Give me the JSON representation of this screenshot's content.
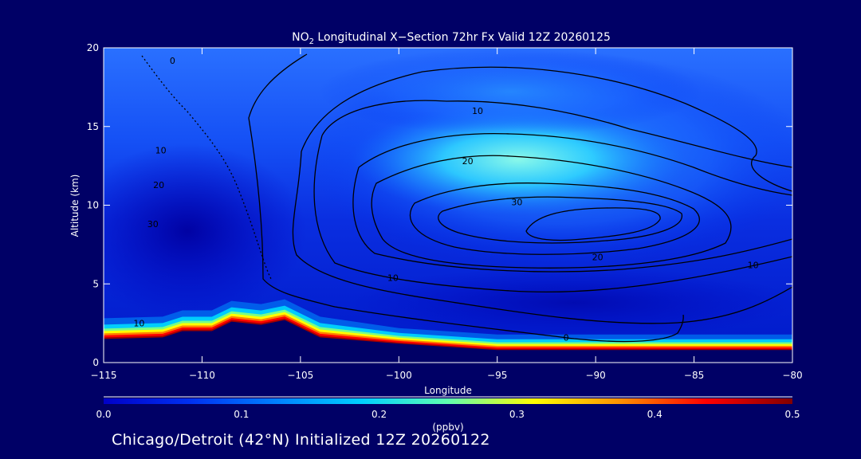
{
  "chart_data": {
    "type": "heatmap",
    "title_prefix": "NO",
    "title_sub": "2",
    "title_suffix": " Longitudinal X−Section 72hr  Fx Valid 12Z 20260125",
    "xlabel": "Longitude",
    "ylabel": "Altitude (km)",
    "xlim": [
      -115,
      -80
    ],
    "ylim": [
      0,
      20
    ],
    "xticks": [
      -115,
      -110,
      -105,
      -100,
      -95,
      -90,
      -85,
      -80
    ],
    "xtick_labels": [
      "−115",
      "−110",
      "−105",
      "−100",
      "−95",
      "−90",
      "−85",
      "−80"
    ],
    "yticks": [
      0,
      5,
      10,
      15,
      20
    ],
    "ytick_labels": [
      "0",
      "5",
      "10",
      "15",
      "20"
    ],
    "grid": false,
    "colorbar": {
      "label": "(ppbv)",
      "min": 0.0,
      "max": 0.5,
      "ticks": [
        0.0,
        0.1,
        0.2,
        0.3,
        0.4,
        0.5
      ],
      "tick_labels": [
        "0.0",
        "0.1",
        "0.2",
        "0.3",
        "0.4",
        "0.5"
      ],
      "colors": [
        "#0000c8",
        "#0030f0",
        "#0080ff",
        "#00d0ff",
        "#60ffb0",
        "#ffff00",
        "#ff9000",
        "#ff0000",
        "#800000"
      ]
    },
    "terrain_km": [
      [
        -115,
        1.5
      ],
      [
        -112,
        1.6
      ],
      [
        -111,
        2.0
      ],
      [
        -109.5,
        2.0
      ],
      [
        -108.5,
        2.6
      ],
      [
        -107,
        2.4
      ],
      [
        -105.8,
        2.7
      ],
      [
        -104,
        1.6
      ],
      [
        -100,
        1.2
      ],
      [
        -95,
        0.8
      ],
      [
        -90,
        0.8
      ],
      [
        -85,
        0.8
      ],
      [
        -80,
        0.8
      ]
    ],
    "contour_labels": [
      {
        "text": "10",
        "lon": -96,
        "alt": 16.0
      },
      {
        "text": "20",
        "lon": -96.5,
        "alt": 12.8
      },
      {
        "text": "30",
        "lon": -94,
        "alt": 10.2
      },
      {
        "text": "20",
        "lon": -89.9,
        "alt": 6.7
      },
      {
        "text": "10",
        "lon": -100.3,
        "alt": 5.4
      },
      {
        "text": "10",
        "lon": -82,
        "alt": 6.2
      },
      {
        "text": "0",
        "lon": -91.5,
        "alt": 1.6
      },
      {
        "text": "0",
        "lon": -111.5,
        "alt": 19.2
      },
      {
        "text": "10",
        "lon": -112.1,
        "alt": 13.5
      },
      {
        "text": "20",
        "lon": -112.2,
        "alt": 11.3
      },
      {
        "text": "30",
        "lon": -112.5,
        "alt": 8.8
      },
      {
        "text": "10",
        "lon": -113.2,
        "alt": 2.5
      }
    ]
  },
  "footer": "Chicago/Detroit (42°N) Initialized 12Z 20260122"
}
